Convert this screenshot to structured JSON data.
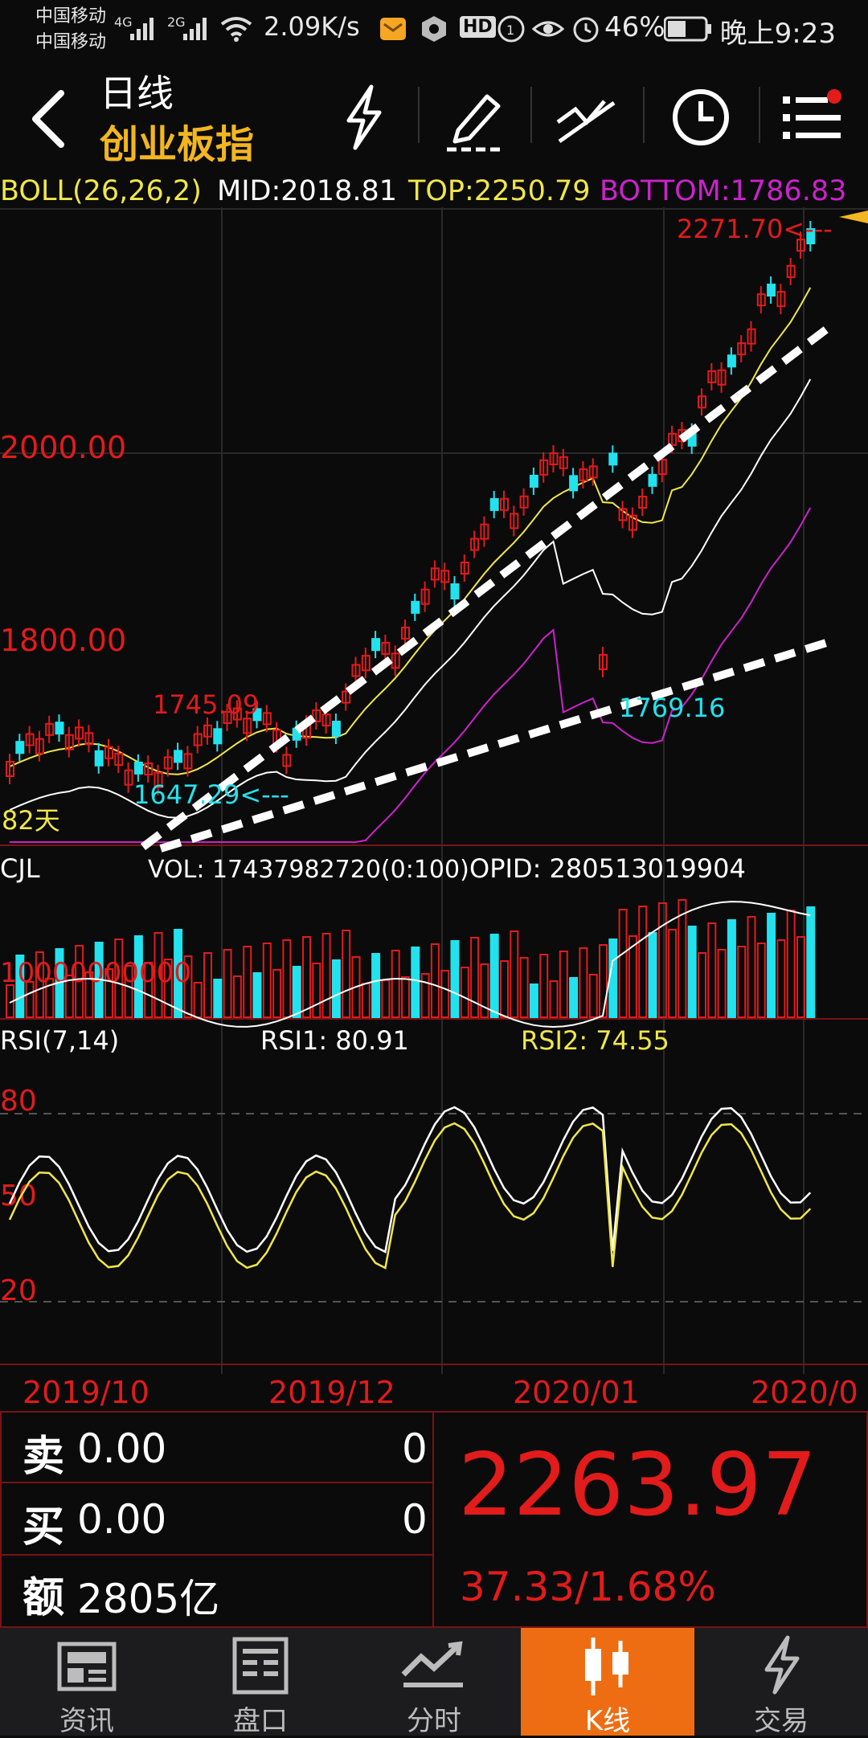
{
  "status": {
    "carrier1": "中国移动",
    "carrier2": "中国移动",
    "net1": "4G",
    "net2": "2G",
    "speed": "2.09K/s",
    "hd": "HD",
    "battery": "46%",
    "time": "晚上9:23"
  },
  "header": {
    "subtitle": "日线",
    "title": "创业板指"
  },
  "indicator": {
    "boll": "BOLL(26,26,2)",
    "mid": "MID:2018.81",
    "top": "TOP:2250.79",
    "bottom": "BOTTOM:1786.83"
  },
  "price_chart": {
    "y_labels": [
      "2000.00",
      "1800.00"
    ],
    "max_label": "2271.70<---",
    "high_label": "1745.09",
    "low_label": "1647.29<---",
    "low2_label": "1769.16",
    "days_label": "82天"
  },
  "volume": {
    "title": "CJL",
    "vol": "VOL: 17437982720(0:100)",
    "opid": "OPID: 280513019904",
    "axis_label": "10000000000"
  },
  "rsi": {
    "title": "RSI(7,14)",
    "rsi1": "RSI1: 80.91",
    "rsi2": "RSI2: 74.55",
    "levels": [
      "80",
      "50",
      "20"
    ]
  },
  "dates": [
    "2019/10",
    "2019/12",
    "2020/01",
    "2020/0"
  ],
  "quote": {
    "sell_char": "卖",
    "sell_price": "0.00",
    "sell_qty": "0",
    "buy_char": "买",
    "buy_price": "0.00",
    "buy_qty": "0",
    "amount_char": "额",
    "amount": "2805亿",
    "price": "2263.97",
    "change": "37.33/1.68%"
  },
  "nav": [
    {
      "label": "资讯",
      "icon": "news-icon"
    },
    {
      "label": "盘口",
      "icon": "orderbook-icon"
    },
    {
      "label": "分时",
      "icon": "timeshare-icon"
    },
    {
      "label": "K线",
      "icon": "kline-icon"
    },
    {
      "label": "交易",
      "icon": "trade-icon"
    }
  ],
  "colors": {
    "up": "#e21b1b",
    "down": "#22e2ee",
    "mid_line": "#f0e64a",
    "top_line": "#ffffff",
    "bottom_line": "#cc22cc",
    "accent": "#ee6d12"
  }
}
